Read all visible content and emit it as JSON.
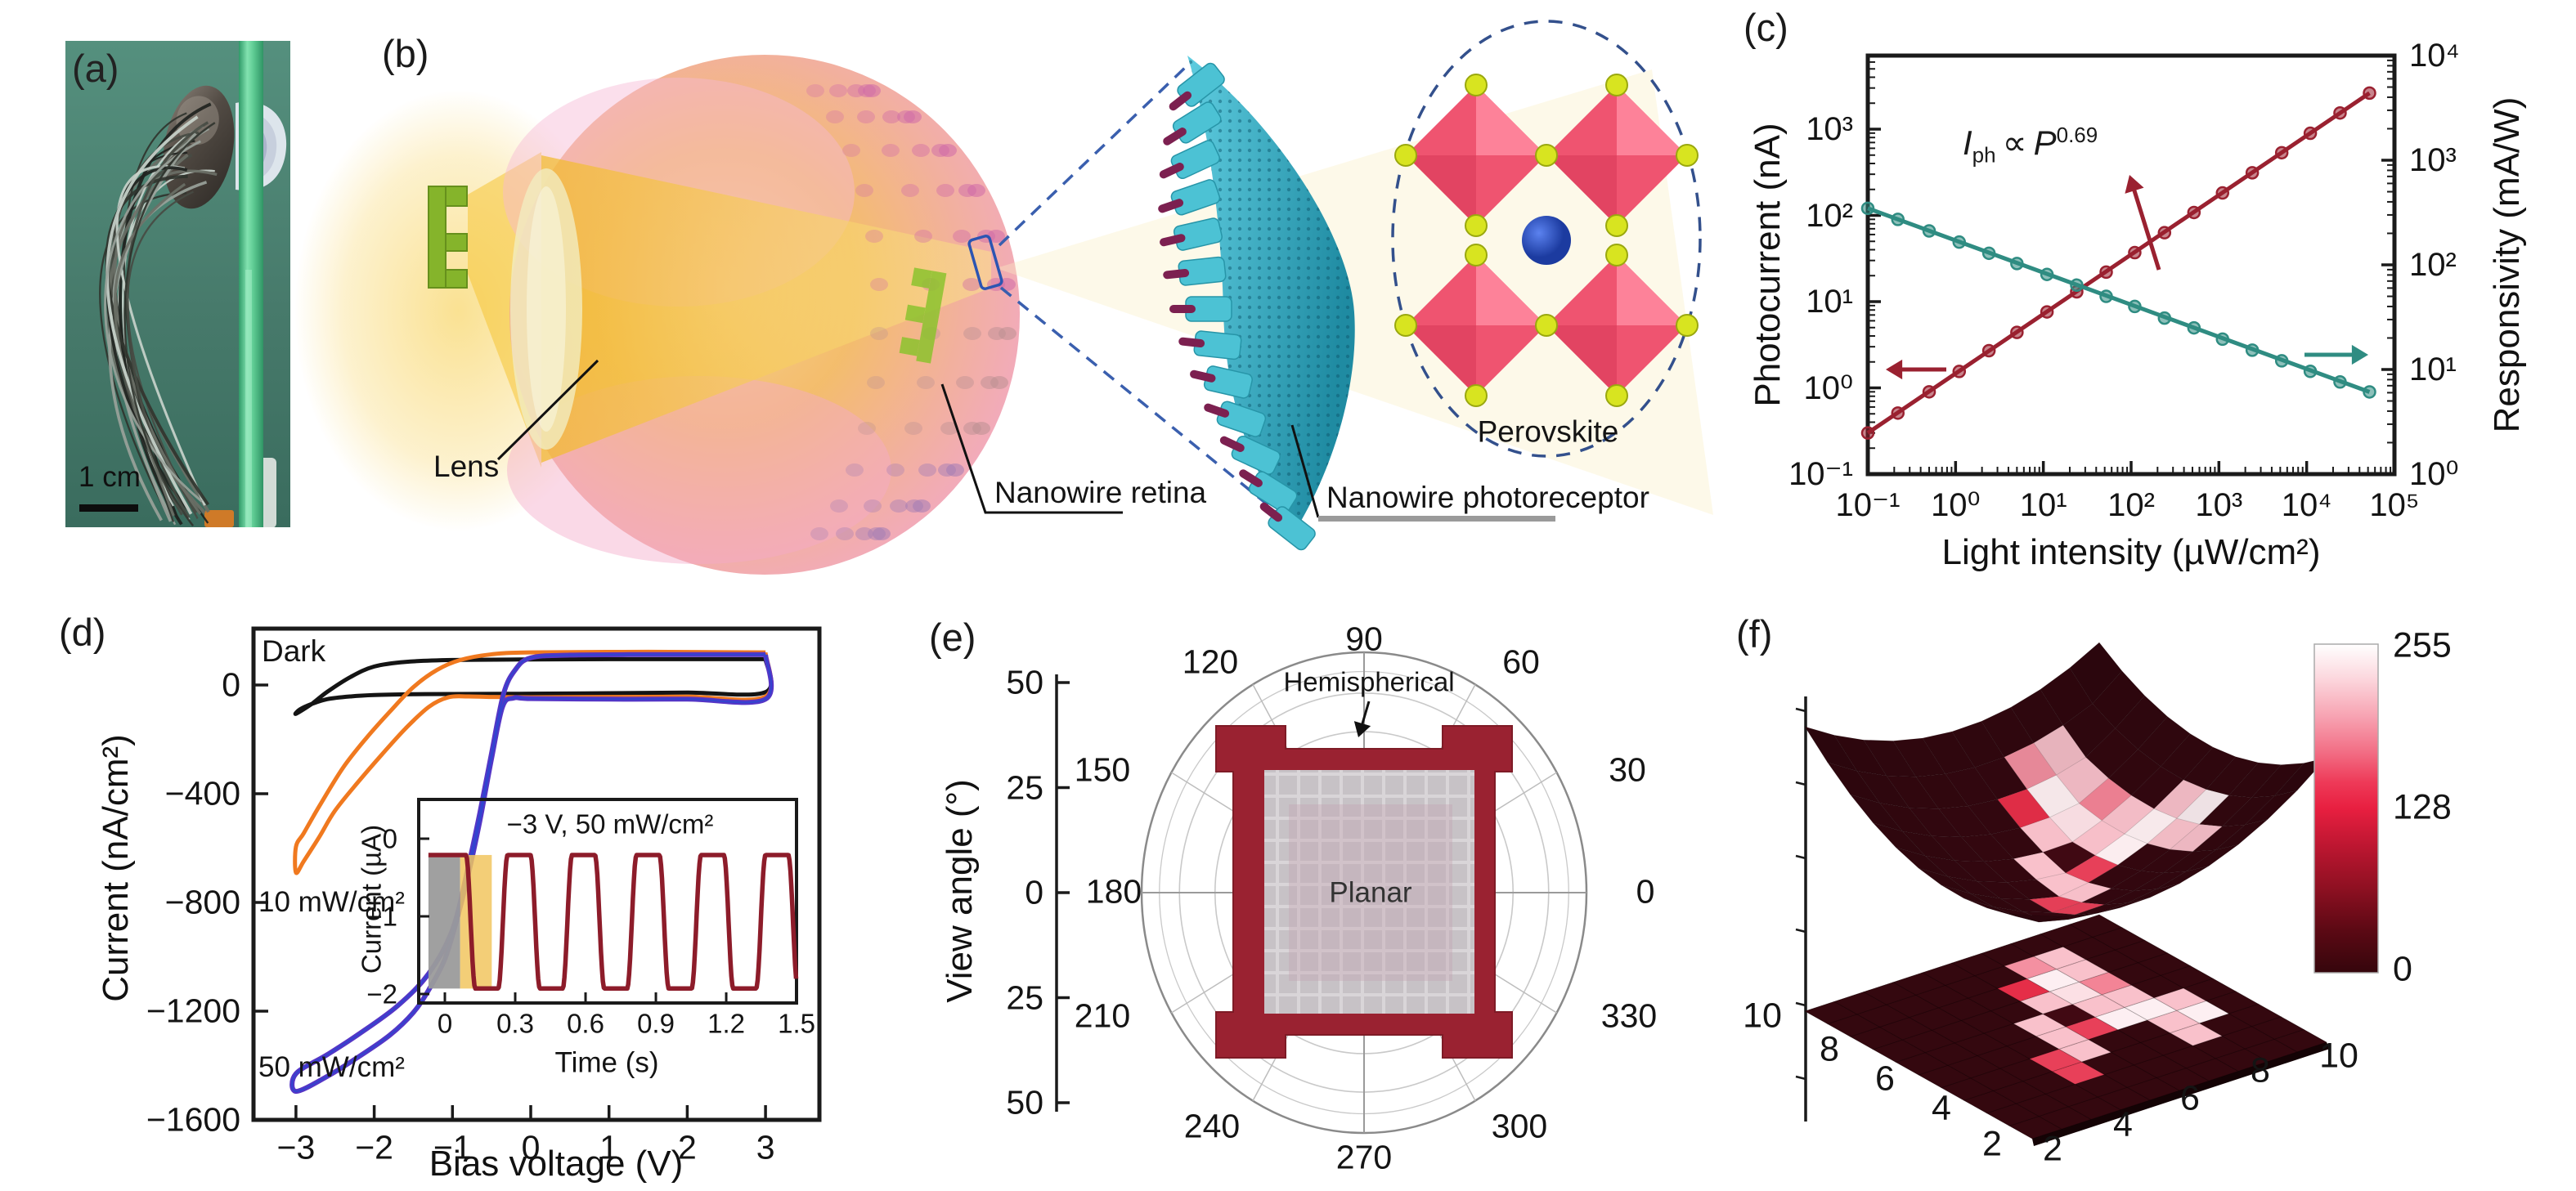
{
  "figure_labels": {
    "a": "(a)",
    "b": "(b)",
    "c": "(c)",
    "d": "(d)",
    "e": "(e)",
    "f": "(f)"
  },
  "panel_a": {
    "scale_bar": "1 cm"
  },
  "panel_b": {
    "labels": {
      "lens": "Lens",
      "retina": "Nanowire retina",
      "photoreceptor": "Nanowire photoreceptor",
      "perovskite": "Perovskite"
    }
  },
  "chart_data": [
    {
      "panel": "c",
      "type": "scatter",
      "x_scale": "log",
      "y_scale": "log",
      "xlabel": "Light intensity (µW/cm²)",
      "ylabel_left": "Photocurrent (nA)",
      "ylabel_right": "Responsivity (mA/W)",
      "x_ticks": [
        "10⁻¹",
        "10⁰",
        "10¹",
        "10²",
        "10³",
        "10⁴",
        "10⁵"
      ],
      "y_ticks_left": [
        "10⁻¹",
        "10⁰",
        "10¹",
        "10²",
        "10³"
      ],
      "y_ticks_right": [
        "10⁰",
        "10¹",
        "10²",
        "10³",
        "10⁴"
      ],
      "xlim": [
        0.1,
        100000
      ],
      "ylim_left": [
        0.1,
        6000
      ],
      "ylim_right": [
        1,
        10000
      ],
      "annotation": {
        "var": "I",
        "sub": "ph",
        "op": "∝",
        "base": "P",
        "exp": "0.69"
      },
      "series": [
        {
          "name": "photocurrent",
          "axis": "left",
          "color": "#9a2130",
          "x": [
            0.1,
            0.22,
            0.5,
            1.1,
            2.4,
            5,
            11,
            24,
            52,
            110,
            240,
            520,
            1100,
            2400,
            5200,
            11000,
            24000,
            52000
          ],
          "y": [
            0.3,
            0.51,
            0.9,
            1.55,
            2.7,
            4.4,
            7.6,
            13,
            22,
            37,
            63,
            108,
            182,
            312,
            533,
            896,
            1540,
            2620
          ]
        },
        {
          "name": "responsivity",
          "axis": "right",
          "color": "#2f8c82",
          "x": [
            0.1,
            0.22,
            0.5,
            1.1,
            2.4,
            5,
            11,
            24,
            52,
            110,
            240,
            520,
            1100,
            2400,
            5200,
            11000,
            24000,
            52000
          ],
          "y": [
            347,
            272,
            211,
            165,
            129,
            103,
            81,
            64,
            50,
            40,
            31,
            25,
            19.5,
            15.3,
            12.1,
            9.6,
            7.6,
            6.1
          ]
        }
      ]
    },
    {
      "panel": "d",
      "type": "line",
      "xlabel": "Bias voltage (V)",
      "ylabel": "Current (nA/cm²)",
      "x_ticks": [
        "−3",
        "−2",
        "−1",
        "0",
        "1",
        "2",
        "3"
      ],
      "y_ticks": [
        "0",
        "−400",
        "−800",
        "−1200",
        "−1600"
      ],
      "xlim": [
        -3.5,
        3.65
      ],
      "ylim": [
        -1700,
        210
      ],
      "series": [
        {
          "name": "Dark",
          "color": "#141414",
          "v": [
            3,
            1,
            0,
            -1,
            -1.6,
            -2,
            -2.3,
            -2.6,
            -2.8,
            -3,
            -2.95,
            -2.8,
            -2.6,
            -2.3,
            -2,
            -1.5,
            -1,
            0,
            1,
            2,
            3,
            3
          ],
          "i": [
            95,
            95,
            94,
            92,
            85,
            68,
            30,
            -25,
            -70,
            -106,
            -90,
            -70,
            -52,
            -42,
            -37,
            -34,
            -33,
            -32,
            -30,
            -28,
            -26,
            95
          ]
        },
        {
          "name": "10 mW/cm²",
          "color": "#f0791f",
          "v": [
            3,
            1.5,
            0,
            -0.5,
            -0.9,
            -1.2,
            -1.5,
            -1.8,
            -2.1,
            -2.4,
            -2.7,
            -2.9,
            -3,
            -3,
            -2.9,
            -2.7,
            -2.5,
            -2.2,
            -1.9,
            -1.6,
            -1.3,
            -1.05,
            -0.8,
            -0.5,
            0,
            1,
            2,
            3,
            3
          ],
          "i": [
            120,
            122,
            120,
            113,
            92,
            55,
            -8,
            -98,
            -195,
            -305,
            -445,
            -545,
            -595,
            -690,
            -648,
            -558,
            -462,
            -355,
            -255,
            -160,
            -80,
            -45,
            -42,
            -44,
            -45,
            -44,
            -43,
            -42,
            120
          ]
        },
        {
          "name": "50 mW/cm²",
          "color": "#5535c6",
          "v": [
            3,
            1.5,
            0.5,
            0,
            -0.2,
            -0.35,
            -0.5,
            -0.65,
            -0.8,
            -1,
            -1.3,
            -1.7,
            -2.2,
            -2.6,
            -3,
            -3,
            -2.6,
            -2.2,
            -1.8,
            -1.5,
            -1.3,
            -1.1,
            -0.95,
            -0.8,
            -0.65,
            -0.5,
            -0.36,
            -0.22,
            0,
            1,
            2,
            3,
            3
          ],
          "i": [
            112,
            112,
            110,
            100,
            55,
            -35,
            -250,
            -470,
            -670,
            -900,
            -1060,
            -1180,
            -1285,
            -1360,
            -1430,
            -1495,
            -1440,
            -1368,
            -1288,
            -1205,
            -1120,
            -1010,
            -870,
            -700,
            -500,
            -270,
            -80,
            -48,
            -50,
            -52,
            -52,
            -52,
            112
          ]
        }
      ]
    },
    {
      "panel": "d-inset",
      "type": "line",
      "title": "−3 V, 50 mW/cm²",
      "xlabel": "Time (s)",
      "ylabel": "Current (µA)",
      "x_ticks": [
        "0",
        "0.3",
        "0.6",
        "0.9",
        "1.2",
        "1.5"
      ],
      "y_ticks": [
        "0",
        "−1",
        "−2"
      ],
      "xlim": [
        -0.11,
        1.5
      ],
      "ylim": [
        -2.1,
        0.5
      ],
      "line_color": "#8d1c2a",
      "wave": {
        "high_uA": -0.21,
        "low_uA": -1.93,
        "period_s": 0.275,
        "first_fall_s": 0.09,
        "low_duration_s": 0.1375,
        "transition_s": 0.04,
        "t_start_s": -0.07,
        "t_end_s": 1.5
      },
      "shaded_regions": [
        {
          "name": "dark-hold",
          "color": "#9b9b9b",
          "t_range": [
            -0.07,
            0.065
          ]
        },
        {
          "name": "light-on-first",
          "color": "#f1c65f",
          "t_range": [
            0.065,
            0.2
          ]
        }
      ]
    },
    {
      "panel": "e",
      "type": "polar",
      "radial_label": "View angle (°)",
      "radial_ticks": [
        "50",
        "25",
        "0",
        "25",
        "50"
      ],
      "radial_max_deg": 55,
      "angle_ticks": [
        "0",
        "30",
        "60",
        "90",
        "120",
        "150",
        "180",
        "210",
        "240",
        "270",
        "300",
        "330"
      ],
      "series": [
        {
          "name": "Hemispherical",
          "color": "#9a2231",
          "view_angle_edge_deg": 40,
          "view_angle_corner_deg": 51
        },
        {
          "name": "Planar",
          "color": "#c7c2c6",
          "view_angle_edge_deg": 28,
          "view_angle_corner_deg": 38
        }
      ]
    },
    {
      "panel": "f",
      "type": "heatmap-3d",
      "surfaces": [
        "hemispherical",
        "planar"
      ],
      "x_ticks": [
        "2",
        "4",
        "6",
        "8",
        "10"
      ],
      "y_ticks": [
        "2",
        "4",
        "6",
        "8",
        "10"
      ],
      "colorbar_ticks": [
        "255",
        "128",
        "0"
      ],
      "colorbar_range": [
        0,
        255
      ],
      "grid_x": [
        1,
        10
      ],
      "grid_y": [
        1,
        10
      ],
      "values_rows_y10_to_y1": [
        [
          12,
          12,
          12,
          12,
          12,
          12,
          12,
          12,
          12,
          12
        ],
        [
          12,
          12,
          12,
          12,
          12,
          12,
          210,
          235,
          12,
          12
        ],
        [
          12,
          12,
          12,
          12,
          12,
          150,
          250,
          235,
          12,
          12
        ],
        [
          12,
          12,
          12,
          12,
          12,
          235,
          245,
          200,
          12,
          12
        ],
        [
          12,
          12,
          12,
          12,
          235,
          25,
          235,
          235,
          12,
          12
        ],
        [
          12,
          12,
          12,
          12,
          235,
          160,
          250,
          250,
          235,
          12
        ],
        [
          12,
          12,
          12,
          160,
          235,
          12,
          12,
          235,
          250,
          12
        ],
        [
          12,
          12,
          12,
          160,
          12,
          12,
          12,
          235,
          12,
          12
        ],
        [
          12,
          12,
          12,
          12,
          12,
          12,
          12,
          12,
          12,
          12
        ],
        [
          12,
          12,
          12,
          12,
          12,
          12,
          12,
          12,
          12,
          12
        ]
      ]
    }
  ]
}
